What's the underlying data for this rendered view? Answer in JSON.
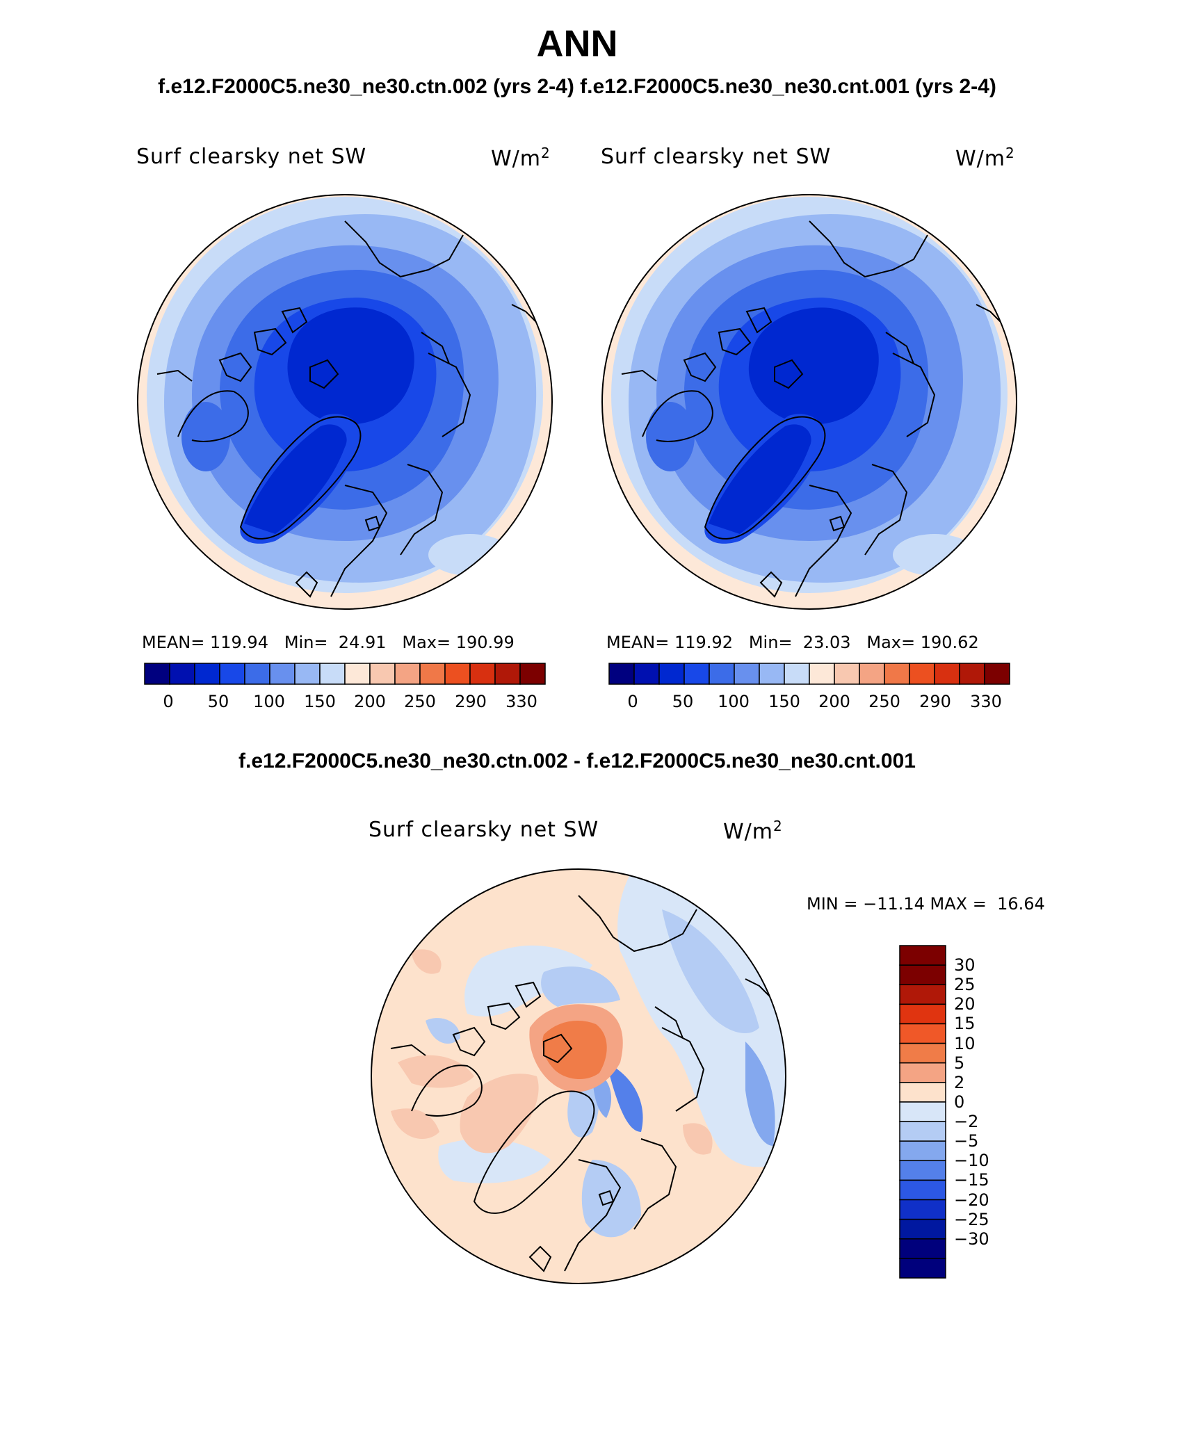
{
  "title": "ANN",
  "subtitle": "f.e12.F2000C5.ne30_ne30.ctn.002 (yrs 2-4) f.e12.F2000C5.ne30_ne30.cnt.001 (yrs 2-4)",
  "diff_title": "f.e12.F2000C5.ne30_ne30.ctn.002 - f.e12.F2000C5.ne30_ne30.cnt.001",
  "panels": [
    {
      "variable": "Surf clearsky net SW",
      "units": "W/m",
      "units_sup": "2",
      "stats": "MEAN= 119.94   Min=  24.91   Max= 190.99"
    },
    {
      "variable": "Surf clearsky net SW",
      "units": "W/m",
      "units_sup": "2",
      "stats": "MEAN= 119.92   Min=  23.03   Max= 190.62"
    }
  ],
  "diff_panel": {
    "variable": "Surf clearsky net SW",
    "units": "W/m",
    "units_sup": "2",
    "stats": "MIN = −11.14 MAX =  16.64"
  },
  "colorbar_abs": {
    "colors": [
      "#00007f",
      "#0010b0",
      "#0028d0",
      "#1848e8",
      "#3c6ce8",
      "#6890ee",
      "#98b8f4",
      "#c8dcf8",
      "#fde8d8",
      "#f8c8b0",
      "#f4a484",
      "#f07848",
      "#ec5020",
      "#d83010",
      "#b01808",
      "#7c0000"
    ],
    "labels": [
      "0",
      "50",
      "100",
      "150",
      "200",
      "250",
      "290",
      "330"
    ]
  },
  "colorbar_diff": {
    "colors": [
      "#7c0000",
      "#b01808",
      "#e03410",
      "#f05828",
      "#f07c48",
      "#f4a484",
      "#fde2cc",
      "#d8e6f8",
      "#b4ccf4",
      "#84a8ee",
      "#5480ea",
      "#2c58e4",
      "#1030c8",
      "#0018a0",
      "#00007c"
    ],
    "labels": [
      "30",
      "25",
      "20",
      "15",
      "10",
      "5",
      "2",
      "0",
      "−2",
      "−5",
      "−10",
      "−15",
      "−20",
      "−25",
      "−30"
    ]
  }
}
